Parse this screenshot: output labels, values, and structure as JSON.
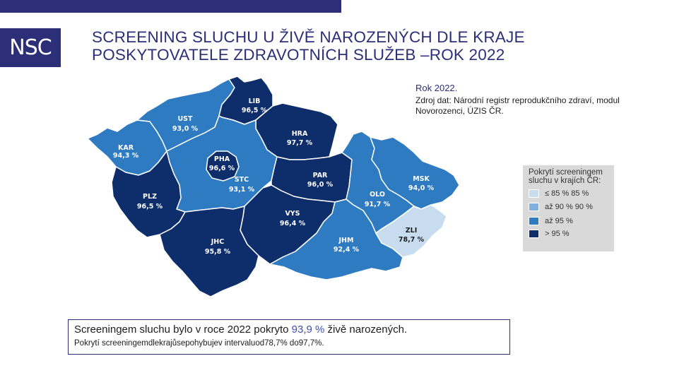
{
  "logo": {
    "text": "NSC"
  },
  "title": {
    "line1": "SCREENING SLUCHU U ŽIVĚ NAROZENÝCH DLE KRAJE",
    "line2": "POSKYTOVATELE ZDRAVOTNÍCH SLUŽEB –ROK 2022"
  },
  "source": {
    "year": "Rok 2022.",
    "text": "Zdroj dat: Národní registr reprodukčního zdraví, modul Novorozenci, ÚZIS ČR."
  },
  "legend": {
    "title": "Pokrytí screeningem sluchu v krajích ČR:",
    "items": [
      {
        "label": "≤ 85 % 85 %",
        "color": "#c8dcf0"
      },
      {
        "label": "až 90 % 90 %",
        "color": "#7fb0df"
      },
      {
        "label": "až 95 %",
        "color": "#2f7bc1"
      },
      {
        "label": "> 95 %",
        "color": "#0e2e6b"
      }
    ]
  },
  "regions": {
    "KAR": {
      "code": "KAR",
      "value": "94,3 %",
      "color": "#2f7bc1",
      "text_color": "#ffffff"
    },
    "UST": {
      "code": "UST",
      "value": "93,0 %",
      "color": "#2f7bc1",
      "text_color": "#ffffff"
    },
    "LIB": {
      "code": "LIB",
      "value": "96,5 %",
      "color": "#0e2e6b",
      "text_color": "#ffffff"
    },
    "HRA": {
      "code": "HRA",
      "value": "97,7 %",
      "color": "#0e2e6b",
      "text_color": "#ffffff"
    },
    "PHA": {
      "code": "PHA",
      "value": "96,6 %",
      "color": "#0e2e6b",
      "text_color": "#ffffff"
    },
    "STC": {
      "code": "STC",
      "value": "93,1 %",
      "color": "#2f7bc1",
      "text_color": "#ffffff"
    },
    "PAR": {
      "code": "PAR",
      "value": "96,0 %",
      "color": "#0e2e6b",
      "text_color": "#ffffff"
    },
    "PLZ": {
      "code": "PLZ",
      "value": "96,5 %",
      "color": "#0e2e6b",
      "text_color": "#ffffff"
    },
    "VYS": {
      "code": "VYS",
      "value": "96,4 %",
      "color": "#0e2e6b",
      "text_color": "#ffffff"
    },
    "JHC": {
      "code": "JHC",
      "value": "95,8 %",
      "color": "#0e2e6b",
      "text_color": "#ffffff"
    },
    "JHM": {
      "code": "JHM",
      "value": "92,4 %",
      "color": "#2f7bc1",
      "text_color": "#ffffff"
    },
    "OLO": {
      "code": "OLO",
      "value": "91,7 %",
      "color": "#2f7bc1",
      "text_color": "#ffffff"
    },
    "MSK": {
      "code": "MSK",
      "value": "94,0 %",
      "color": "#2f7bc1",
      "text_color": "#ffffff"
    },
    "ZLI": {
      "code": "ZLI",
      "value": "78,7 %",
      "color": "#c8dcf0",
      "text_color": "#1c1c1c"
    }
  },
  "summary": {
    "line1_pre": "Screeningem sluchu bylo v roce 2022 pokryto ",
    "line1_value": "93,9 %",
    "line1_post": " živě narozených.",
    "line2": "Pokrytí screeningemdlekrajůsepohybujev intervaluod78,7% do97,7%."
  }
}
